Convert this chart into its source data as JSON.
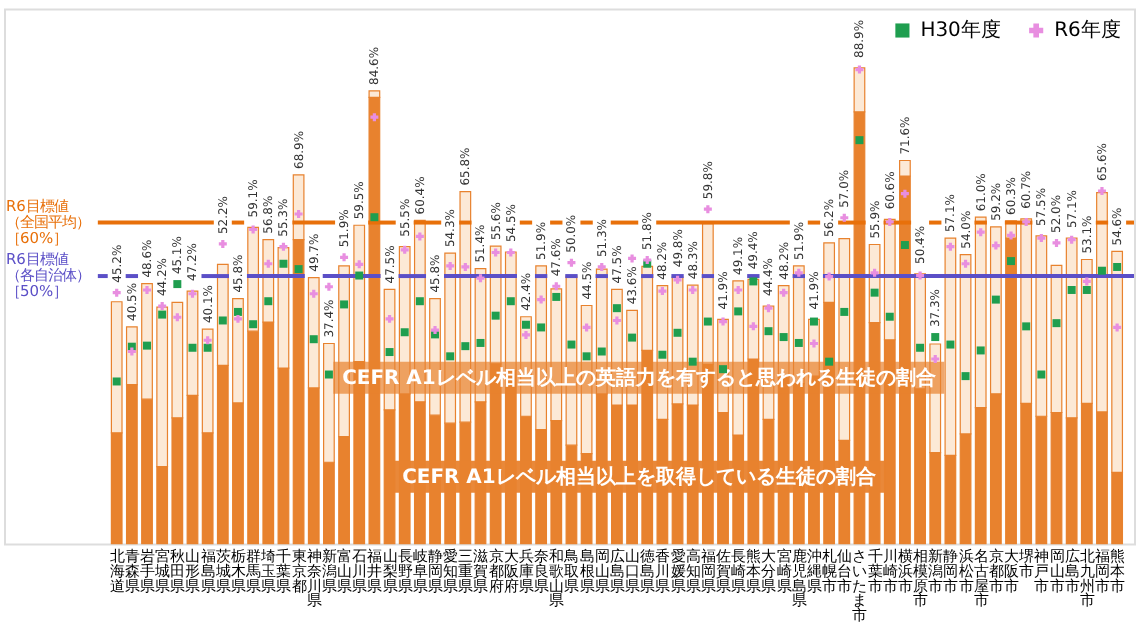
{
  "chart_data": {
    "type": "bar",
    "stacked": true,
    "categories": [
      "北海道",
      "青森県",
      "岩手県",
      "宮城県",
      "秋田県",
      "山形県",
      "福島県",
      "茨城県",
      "栃木県",
      "群馬県",
      "埼玉県",
      "千葉県",
      "東京都",
      "神奈川県",
      "新潟県",
      "富山県",
      "石川県",
      "福井県",
      "山梨県",
      "長野県",
      "岐阜県",
      "静岡県",
      "愛知県",
      "三重県",
      "滋賀県",
      "京都府",
      "大阪府",
      "兵庫県",
      "奈良県",
      "和歌山県",
      "鳥取県",
      "島根県",
      "岡山県",
      "広島県",
      "山口県",
      "徳島県",
      "香川県",
      "愛媛県",
      "高知県",
      "福岡県",
      "佐賀県",
      "長崎県",
      "熊本県",
      "大分県",
      "宮崎県",
      "鹿児島県",
      "沖縄県",
      "札幌市",
      "仙台市",
      "さいたま市",
      "千葉市",
      "川崎市",
      "横浜市",
      "相模原市",
      "新潟市",
      "静岡市",
      "浜松市",
      "名古屋市",
      "京都市",
      "大阪市",
      "堺市",
      "神戸市",
      "岡山市",
      "広島市",
      "北九州市",
      "福岡市",
      "熊本市"
    ],
    "series": [
      {
        "name": "CEFR A1レベル相当以上を取得している生徒の割合",
        "color": "#e8822e",
        "values": [
          20.7,
          29.7,
          27.0,
          14.4,
          23.5,
          27.7,
          20.7,
          33.3,
          26.3,
          39.7,
          41.4,
          32.8,
          56.8,
          29.1,
          15.2,
          20.0,
          34.0,
          83.4,
          25.0,
          28.0,
          26.5,
          24.0,
          22.5,
          22.7,
          26.5,
          33.6,
          32.4,
          23.8,
          21.3,
          23.0,
          18.4,
          16.8,
          28.0,
          25.9,
          25.9,
          36.1,
          23.2,
          26.1,
          25.9,
          33.5,
          24.5,
          20.3,
          34.5,
          23.2,
          31.1,
          29.9,
          31.3,
          45.1,
          19.3,
          80.7,
          41.3,
          38.1,
          68.7,
          28.9,
          17.0,
          16.5,
          20.5,
          25.4,
          28.0,
          57.1,
          26.2,
          23.8,
          24.5,
          23.5,
          26.2,
          24.6,
          13.3
        ]
      },
      {
        "name": "CEFR A1レベル相当以上の英語力を有すると思われる生徒の割合",
        "color": "#fce9d6",
        "values": [
          24.5,
          10.8,
          21.6,
          29.8,
          21.6,
          19.5,
          19.4,
          18.9,
          19.5,
          19.4,
          15.4,
          22.5,
          12.1,
          20.6,
          22.2,
          31.9,
          25.5,
          1.2,
          22.5,
          27.5,
          33.9,
          21.8,
          31.8,
          43.1,
          24.9,
          22.0,
          22.1,
          18.6,
          30.6,
          24.6,
          31.6,
          27.7,
          23.3,
          21.6,
          17.7,
          15.7,
          25.0,
          23.7,
          22.4,
          26.3,
          17.4,
          28.8,
          14.9,
          21.2,
          17.1,
          22.0,
          10.6,
          11.1,
          37.7,
          8.2,
          14.6,
          22.5,
          2.9,
          21.5,
          20.3,
          40.6,
          33.5,
          35.6,
          31.2,
          3.2,
          34.5,
          33.7,
          27.5,
          33.6,
          26.9,
          41.0,
          41.3
        ]
      },
      {
        "name": "H30年度",
        "type": "scatter",
        "color": "#1f9e4f",
        "marker": "square",
        "values": [
          30.3,
          36.8,
          37.0,
          42.8,
          48.5,
          36.6,
          36.6,
          41.7,
          43.3,
          41.0,
          45.3,
          52.3,
          51.3,
          38.2,
          31.6,
          44.7,
          50.1,
          61.0,
          35.8,
          39.5,
          45.3,
          39.1,
          35.0,
          36.9,
          37.5,
          42.6,
          45.3,
          40.9,
          40.4,
          46.1,
          37.2,
          35.0,
          35.9,
          44.0,
          38.5,
          52.3,
          35.3,
          39.4,
          34.0,
          41.5,
          32.6,
          43.4,
          49.0,
          39.7,
          38.6,
          37.5,
          41.5,
          34.0,
          43.3,
          75.4,
          46.9,
          42.4,
          55.8,
          36.6,
          38.6,
          37.2,
          31.3,
          36.1,
          45.6,
          52.8,
          40.6,
          31.6,
          41.2,
          47.4,
          47.4,
          51.0,
          51.7
        ]
      },
      {
        "name": "R6年度",
        "type": "scatter",
        "color": "#e88ee0",
        "marker": "cross",
        "values": [
          46.9,
          35.9,
          47.4,
          44.4,
          42.3,
          46.7,
          38.0,
          56.0,
          42.0,
          58.7,
          52.3,
          55.5,
          61.6,
          46.7,
          48.0,
          53.5,
          52.2,
          79.7,
          42.0,
          54.9,
          57.4,
          39.9,
          51.9,
          51.7,
          49.6,
          54.4,
          54.4,
          39.0,
          45.6,
          48.1,
          52.5,
          40.4,
          51.7,
          41.7,
          53.3,
          53.0,
          47.2,
          49.3,
          47.4,
          62.5,
          41.5,
          47.4,
          40.6,
          44.0,
          46.9,
          50.6,
          37.4,
          49.9,
          60.9,
          88.6,
          50.6,
          60.1,
          65.4,
          50.1,
          34.5,
          55.5,
          52.3,
          58.2,
          55.7,
          57.6,
          60.1,
          57.1,
          56.2,
          56.8,
          49.0,
          65.9,
          40.4
        ]
      }
    ],
    "totals": [
      "45.2%",
      "40.5%",
      "48.6%",
      "44.2%",
      "45.1%",
      "47.2%",
      "40.1%",
      "52.2%",
      "45.8%",
      "59.1%",
      "56.8%",
      "55.3%",
      "68.9%",
      "49.7%",
      "37.4%",
      "51.9%",
      "59.5%",
      "84.6%",
      "47.5%",
      "55.5%",
      "60.4%",
      "45.8%",
      "54.3%",
      "65.8%",
      "51.4%",
      "55.6%",
      "54.5%",
      "42.4%",
      "51.9%",
      "47.6%",
      "50.0%",
      "44.5%",
      "51.3%",
      "47.5%",
      "43.6%",
      "51.8%",
      "48.2%",
      "49.8%",
      "48.3%",
      "59.8%",
      "41.9%",
      "49.1%",
      "49.4%",
      "44.4%",
      "48.2%",
      "51.9%",
      "41.9%",
      "56.2%",
      "57.0%",
      "88.9%",
      "55.9%",
      "60.6%",
      "71.6%",
      "50.4%",
      "37.3%",
      "57.1%",
      "54.0%",
      "61.0%",
      "59.2%",
      "60.3%",
      "60.7%",
      "57.5%",
      "52.0%",
      "57.1%",
      "53.1%",
      "65.6%",
      "54.6%"
    ],
    "ylim": [
      0,
      100
    ],
    "ref_lines": [
      {
        "axis": "y",
        "value": 60,
        "label": "R6目標値（全国平均）［60%］",
        "color": "#e8700a"
      },
      {
        "axis": "y",
        "value": 50,
        "label": "R6目標値（各自治体）［50%］",
        "color": "#5b4fc7"
      }
    ],
    "legend": "top right",
    "tick_labels": "x",
    "grid": false
  }
}
